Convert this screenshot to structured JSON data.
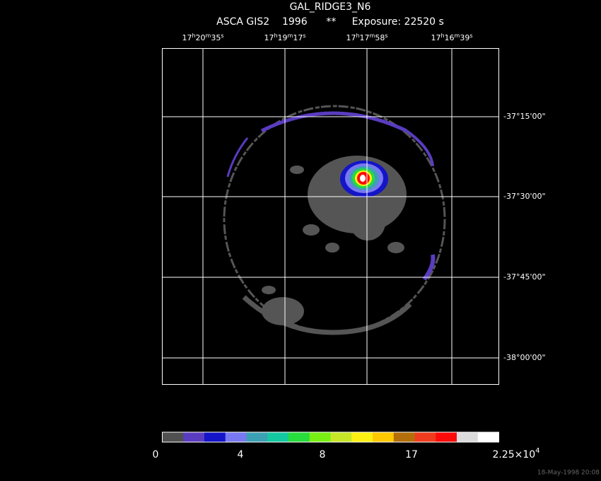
{
  "header": {
    "title": "GAL_RIDGE3_N6",
    "subtitle": "ASCA GIS2    1996      **     Exposure: 22520 s"
  },
  "ra_labels": [
    [
      "17",
      "h",
      "20",
      "m",
      "35",
      "s"
    ],
    [
      "17",
      "h",
      "19",
      "m",
      "17",
      "s"
    ],
    [
      "17",
      "h",
      "17",
      "m",
      "58",
      "s"
    ],
    [
      "17",
      "h",
      "16",
      "m",
      "39",
      "s"
    ]
  ],
  "dec_labels": [
    "-37°15'00\"",
    "-37°30'00\"",
    "-37°45'00\"",
    "-38°00'00\""
  ],
  "colorbar": {
    "colors": [
      "#505050",
      "#5a3cc0",
      "#1414c8",
      "#7878f0",
      "#3ca0b4",
      "#14c8a0",
      "#28dc3c",
      "#78f014",
      "#c8e628",
      "#fff014",
      "#ffc800",
      "#b46e0a",
      "#f03c1e",
      "#ff0a0a",
      "#dcdcdc",
      "#ffffff"
    ],
    "labels": [
      "0",
      "4",
      "8",
      "17"
    ],
    "max_label": {
      "mantissa": "2.25×10",
      "exponent": "4"
    }
  },
  "footer": {
    "timestamp": "18-May-1998 20:08"
  }
}
